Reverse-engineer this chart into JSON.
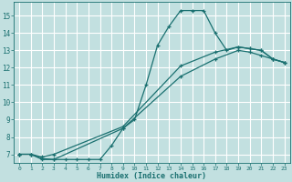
{
  "title": "",
  "xlabel": "Humidex (Indice chaleur)",
  "bg_color": "#c2e0e0",
  "grid_color": "#ffffff",
  "line_color": "#1a7070",
  "xlim": [
    -0.5,
    23.5
  ],
  "ylim": [
    6.5,
    15.8
  ],
  "xticks": [
    0,
    1,
    2,
    3,
    4,
    5,
    6,
    7,
    8,
    9,
    10,
    11,
    12,
    13,
    14,
    15,
    16,
    17,
    18,
    19,
    20,
    21,
    22,
    23
  ],
  "yticks": [
    7,
    8,
    9,
    10,
    11,
    12,
    13,
    14,
    15
  ],
  "line1_x": [
    0,
    1,
    2,
    3,
    4,
    5,
    6,
    7,
    8,
    9,
    10,
    11,
    12,
    13,
    14,
    15,
    16,
    17,
    18,
    19,
    20,
    21,
    22,
    23
  ],
  "line1_y": [
    7.0,
    7.0,
    6.7,
    6.7,
    6.7,
    6.7,
    6.7,
    6.7,
    7.5,
    8.5,
    9.0,
    11.0,
    13.3,
    14.4,
    15.3,
    15.3,
    15.3,
    14.0,
    13.0,
    13.2,
    13.1,
    13.0,
    12.5,
    12.3
  ],
  "line2_x": [
    0,
    1,
    2,
    3,
    9,
    14,
    17,
    19,
    20,
    21,
    22,
    23
  ],
  "line2_y": [
    7.0,
    7.0,
    6.85,
    7.0,
    8.6,
    12.1,
    12.9,
    13.2,
    13.1,
    13.0,
    12.5,
    12.3
  ],
  "line3_x": [
    0,
    1,
    2,
    3,
    9,
    14,
    17,
    19,
    20,
    21,
    22,
    23
  ],
  "line3_y": [
    7.0,
    7.0,
    6.75,
    6.7,
    8.5,
    11.5,
    12.5,
    13.0,
    12.9,
    12.7,
    12.5,
    12.3
  ]
}
